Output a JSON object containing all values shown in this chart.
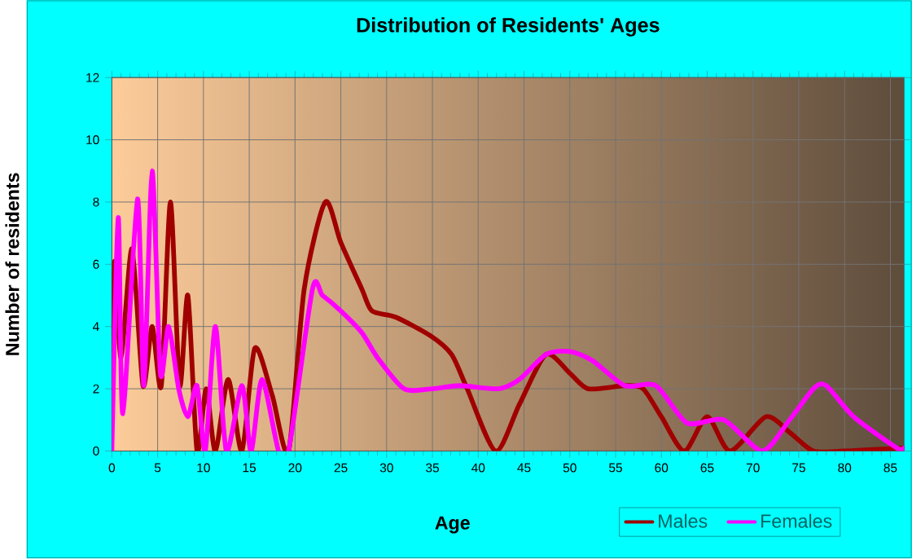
{
  "chart_data": {
    "type": "line",
    "title": "Distribution of Residents' Ages",
    "xlabel": "Age",
    "ylabel": "Number of residents",
    "xlim": [
      0,
      86.5
    ],
    "xticks": [
      0,
      5,
      10,
      15,
      20,
      25,
      30,
      35,
      40,
      45,
      50,
      55,
      60,
      65,
      70,
      75,
      80,
      85
    ],
    "ylim": [
      0,
      12
    ],
    "yticks": [
      0,
      2,
      4,
      6,
      8,
      10,
      12
    ],
    "grid": true,
    "legend": "bottom",
    "series": [
      {
        "name": "Males",
        "color": "#a00000",
        "x": [
          0,
          0.3,
          1,
          2.2,
          3.4,
          4.4,
          5.4,
          6.4,
          7.4,
          8.3,
          9.3,
          10.3,
          11.3,
          12.7,
          14.2,
          15.6,
          17.5,
          19.3,
          21,
          23.3,
          25,
          27.3,
          28.4,
          31,
          34.8,
          37.1,
          38.8,
          41.9,
          44.5,
          47.4,
          50,
          52,
          56,
          58,
          60,
          62.5,
          65,
          67.5,
          71.4,
          74,
          76.6,
          80,
          86.5
        ],
        "values": [
          2,
          6.1,
          3.0,
          6.5,
          2.1,
          4.0,
          2.1,
          8.0,
          2.1,
          5.0,
          0,
          2.0,
          0,
          2.3,
          0,
          3.3,
          1.8,
          0,
          5.2,
          8.0,
          6.7,
          5.2,
          4.5,
          4.3,
          3.7,
          3.1,
          2.0,
          0,
          1.5,
          3.1,
          2.5,
          2.0,
          2.1,
          2.0,
          1.1,
          0,
          1.1,
          0,
          1.1,
          0.6,
          0,
          0,
          0.1
        ]
      },
      {
        "name": "Females",
        "color": "#ff00ff",
        "x": [
          0,
          0.7,
          1.2,
          2.8,
          3.5,
          4.4,
          5.3,
          6.2,
          7.3,
          8.3,
          9.3,
          10.2,
          11.3,
          12.5,
          14.2,
          15.2,
          16.4,
          18.2,
          19.3,
          21.9,
          23,
          25,
          27.3,
          29,
          31.9,
          35,
          38,
          42.2,
          44.5,
          47.4,
          50,
          52.5,
          56,
          59.4,
          62.8,
          66.8,
          71,
          74,
          76.6,
          78,
          81,
          85.7,
          86.5
        ],
        "values": [
          0,
          7.5,
          1.2,
          8.1,
          2.1,
          9.0,
          2.5,
          4.0,
          2.0,
          1.1,
          2.1,
          0,
          4.0,
          0,
          2.1,
          0,
          2.3,
          0,
          0,
          5.2,
          5.0,
          4.5,
          3.8,
          3.0,
          2.0,
          2.0,
          2.1,
          2.0,
          2.3,
          3.1,
          3.2,
          2.9,
          2.1,
          2.1,
          0.9,
          1.0,
          0,
          1.0,
          2.0,
          2.1,
          1.1,
          0.1,
          0.1
        ]
      }
    ]
  }
}
